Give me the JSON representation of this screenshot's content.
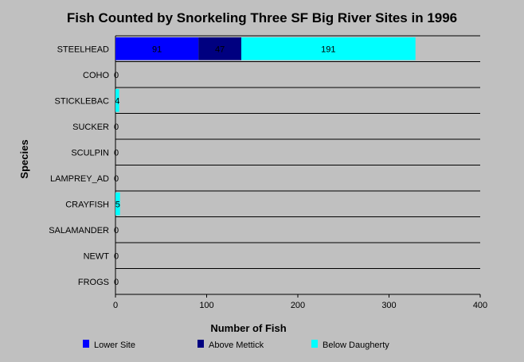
{
  "chart_data": {
    "type": "bar",
    "orientation": "horizontal",
    "stacked": true,
    "title": "Fish Counted by Snorkeling Three SF Big River Sites in 1996",
    "xlabel": "Number of Fish",
    "ylabel": "Species",
    "xlim": [
      0,
      400
    ],
    "xticks": [
      0,
      100,
      200,
      300,
      400
    ],
    "categories": [
      "STEELHEAD",
      "COHO",
      "STICKLEBAC",
      "SUCKER",
      "SCULPIN",
      "LAMPREY_AD",
      "CRAYFISH",
      "SALAMANDER",
      "NEWT",
      "FROGS"
    ],
    "series": [
      {
        "name": "Lower Site",
        "color": "#0000ff",
        "values": [
          91,
          0,
          0,
          0,
          0,
          0,
          0,
          0,
          0,
          0
        ]
      },
      {
        "name": "Above Mettick",
        "color": "#000080",
        "values": [
          47,
          0,
          0,
          0,
          0,
          0,
          0,
          0,
          0,
          0
        ]
      },
      {
        "name": "Below Daugherty",
        "color": "#00ffff",
        "values": [
          191,
          0,
          4,
          0,
          0,
          0,
          5,
          0,
          0,
          0
        ]
      }
    ],
    "data_labels": [
      [
        "91",
        "",
        "",
        "",
        "",
        "",
        "",
        "",
        "",
        ""
      ],
      [
        "47",
        "",
        "",
        "",
        "",
        "",
        "",
        "",
        "",
        ""
      ],
      [
        "191",
        "0",
        "4",
        "0",
        "0",
        "0",
        "5",
        "0",
        "0",
        "0"
      ]
    ],
    "grid": "horizontal",
    "legend_position": "bottom"
  }
}
